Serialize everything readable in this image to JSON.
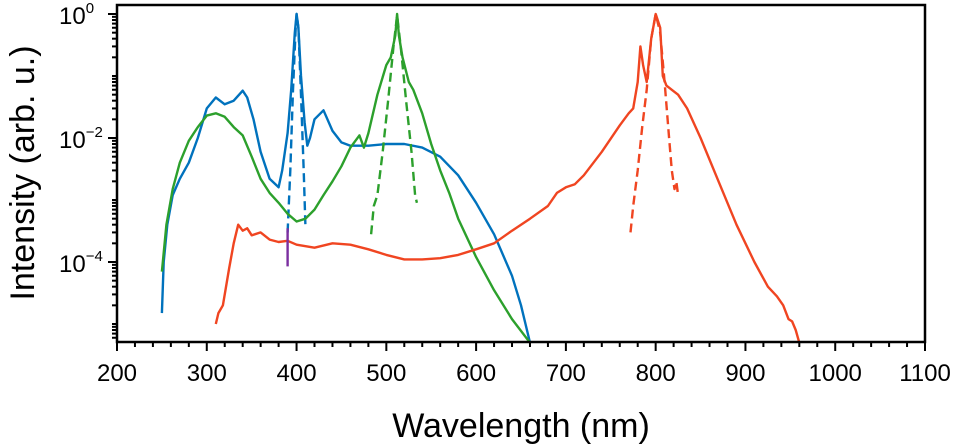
{
  "chart_data": {
    "type": "line",
    "title": "",
    "xlabel": "Wavelength (nm)",
    "ylabel": "Intensity (arb. u.)",
    "xlim": [
      200,
      1100
    ],
    "ylim": [
      5e-06,
      1.4
    ],
    "yscale": "log",
    "grid": false,
    "legend": "none",
    "x_ticks": [
      200,
      300,
      400,
      500,
      600,
      700,
      800,
      900,
      1000,
      1100
    ],
    "x_tick_labels": [
      "200",
      "300",
      "400",
      "500",
      "600",
      "700",
      "800",
      "900",
      "1000",
      "1100"
    ],
    "y_ticks": [
      0.0001,
      0.01,
      1
    ],
    "y_tick_labels": [
      {
        "base": "10",
        "exp": "−4"
      },
      {
        "base": "10",
        "exp": "−2"
      },
      {
        "base": "10",
        "exp": "0"
      }
    ],
    "series": [
      {
        "name": "blue-solid",
        "color": "#0072BD",
        "dash": false,
        "x": [
          250,
          252,
          256,
          262,
          270,
          280,
          290,
          300,
          310,
          320,
          330,
          340,
          345,
          352,
          360,
          370,
          380,
          384,
          390,
          394,
          398,
          400,
          402,
          405,
          409,
          412,
          415,
          420,
          430,
          440,
          450,
          460,
          480,
          500,
          520,
          540,
          560,
          580,
          600,
          620,
          640,
          650,
          655,
          660
        ],
        "y": [
          1.5e-05,
          0.0001,
          0.0004,
          0.0012,
          0.0022,
          0.004,
          0.01,
          0.03,
          0.045,
          0.035,
          0.04,
          0.058,
          0.045,
          0.02,
          0.006,
          0.0022,
          0.0016,
          0.003,
          0.012,
          0.06,
          0.5,
          1.0,
          0.6,
          0.1,
          0.018,
          0.0075,
          0.01,
          0.02,
          0.028,
          0.013,
          0.0085,
          0.0075,
          0.0075,
          0.008,
          0.008,
          0.007,
          0.005,
          0.0025,
          0.0009,
          0.00028,
          6e-05,
          2e-05,
          1e-05,
          5e-06
        ]
      },
      {
        "name": "blue-dashed",
        "color": "#0072BD",
        "dash": true,
        "x": [
          390,
          393,
          396,
          399,
          400,
          402,
          405,
          408,
          410
        ],
        "y": [
          0.0003,
          0.003,
          0.06,
          0.6,
          1.0,
          0.6,
          0.05,
          0.003,
          0.00035
        ]
      },
      {
        "name": "green-solid",
        "color": "#2CA02C",
        "dash": false,
        "x": [
          250,
          255,
          262,
          270,
          280,
          290,
          300,
          310,
          320,
          330,
          340,
          350,
          360,
          370,
          380,
          390,
          400,
          410,
          420,
          430,
          440,
          450,
          460,
          470,
          475,
          480,
          490,
          500,
          505,
          510,
          512,
          514,
          518,
          525,
          530,
          540,
          550,
          560,
          570,
          580,
          600,
          620,
          640,
          660
        ],
        "y": [
          7e-05,
          0.0004,
          0.0015,
          0.004,
          0.009,
          0.015,
          0.023,
          0.025,
          0.022,
          0.015,
          0.011,
          0.005,
          0.0022,
          0.0013,
          0.0009,
          0.0006,
          0.00045,
          0.0005,
          0.0007,
          0.0012,
          0.002,
          0.0035,
          0.007,
          0.011,
          0.007,
          0.012,
          0.05,
          0.15,
          0.2,
          0.45,
          1.0,
          0.45,
          0.2,
          0.08,
          0.06,
          0.025,
          0.008,
          0.003,
          0.0013,
          0.0005,
          0.00012,
          3.5e-05,
          1.2e-05,
          5e-06
        ]
      },
      {
        "name": "green-dashed",
        "color": "#2CA02C",
        "dash": true,
        "x": [
          483,
          486,
          490,
          496,
          502,
          508,
          512,
          516,
          522,
          528,
          532,
          534
        ],
        "y": [
          0.00028,
          0.0008,
          0.0012,
          0.006,
          0.04,
          0.3,
          0.95,
          0.3,
          0.04,
          0.006,
          0.0012,
          0.0009
        ]
      },
      {
        "name": "red-solid",
        "color": "#F04521",
        "dash": false,
        "x": [
          310,
          313,
          318,
          325,
          330,
          335,
          340,
          345,
          350,
          360,
          370,
          380,
          390,
          400,
          420,
          440,
          460,
          480,
          500,
          520,
          540,
          560,
          580,
          600,
          620,
          640,
          660,
          680,
          690,
          700,
          710,
          720,
          740,
          760,
          770,
          775,
          780,
          783,
          786,
          790,
          795,
          800,
          805,
          808,
          812,
          818,
          825,
          835,
          850,
          870,
          890,
          910,
          925,
          935,
          942,
          948,
          952,
          956,
          960
        ],
        "y": [
          1e-05,
          1.5e-05,
          2e-05,
          8e-05,
          0.0002,
          0.0004,
          0.00032,
          0.00035,
          0.00027,
          0.0003,
          0.00023,
          0.00021,
          0.00022,
          0.00019,
          0.00017,
          0.0002,
          0.00019,
          0.00016,
          0.00013,
          0.00011,
          0.00011,
          0.000115,
          0.00013,
          0.00016,
          0.0002,
          0.00032,
          0.0005,
          0.0008,
          0.0013,
          0.0016,
          0.0018,
          0.0025,
          0.006,
          0.016,
          0.025,
          0.03,
          0.08,
          0.3,
          0.15,
          0.08,
          0.4,
          1.0,
          0.6,
          0.1,
          0.07,
          0.06,
          0.05,
          0.03,
          0.01,
          0.002,
          0.0004,
          0.0001,
          4e-05,
          2.8e-05,
          2e-05,
          1.2e-05,
          1.1e-05,
          8e-06,
          5e-06
        ]
      },
      {
        "name": "red-dashed",
        "color": "#F04521",
        "dash": true,
        "x": [
          772,
          775,
          780,
          785,
          790,
          795,
          800,
          805,
          810,
          815,
          818,
          821,
          823,
          825
        ],
        "y": [
          0.0003,
          0.0008,
          0.003,
          0.015,
          0.06,
          0.4,
          1.0,
          0.5,
          0.08,
          0.01,
          0.003,
          0.0015,
          0.002,
          0.0012
        ]
      },
      {
        "name": "purple-marker",
        "color": "#7B2FA0",
        "dash": false,
        "x": [
          390,
          390
        ],
        "y": [
          8.5e-05,
          0.00035
        ]
      }
    ]
  }
}
